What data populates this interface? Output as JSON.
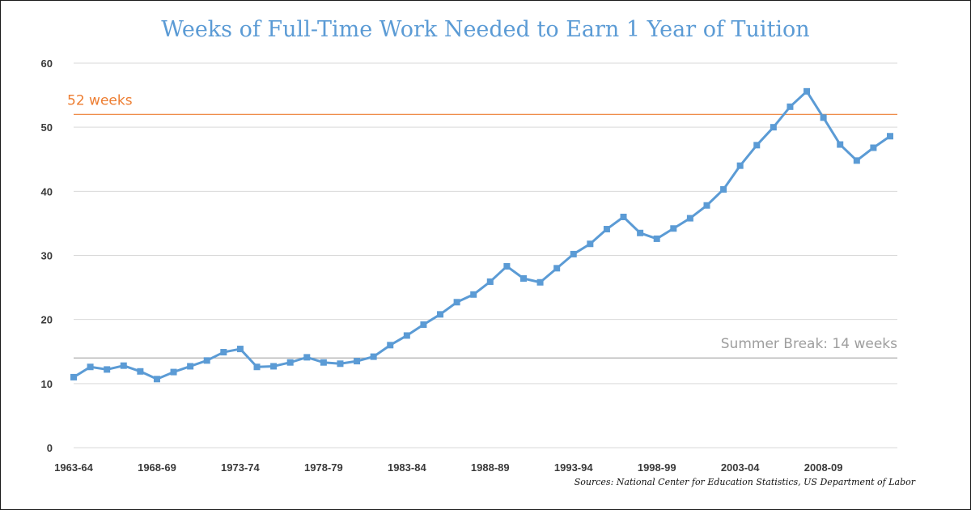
{
  "chart_data": {
    "type": "line",
    "title": "Weeks of Full-Time Work Needed to Earn 1 Year of Tuition",
    "xlabel": "",
    "ylabel": "",
    "ylim": [
      0,
      60
    ],
    "yticks": [
      0,
      10,
      20,
      30,
      40,
      50,
      60
    ],
    "grid": true,
    "x": [
      "1963-64",
      "1964-65",
      "1965-66",
      "1966-67",
      "1967-68",
      "1968-69",
      "1969-70",
      "1970-71",
      "1971-72",
      "1972-73",
      "1973-74",
      "1974-75",
      "1975-76",
      "1976-77",
      "1977-78",
      "1978-79",
      "1979-80",
      "1980-81",
      "1981-82",
      "1982-83",
      "1983-84",
      "1984-85",
      "1985-86",
      "1986-87",
      "1987-88",
      "1988-89",
      "1989-90",
      "1990-91",
      "1991-92",
      "1992-93",
      "1993-94",
      "1994-95",
      "1995-96",
      "1996-97",
      "1997-98",
      "1998-99",
      "1999-00",
      "2000-01",
      "2001-02",
      "2002-03",
      "2003-04",
      "2004-05",
      "2005-06",
      "2006-07",
      "2007-08",
      "2008-09",
      "2009-10",
      "2010-11",
      "2011-12",
      "2012-13"
    ],
    "x_tick_labels": [
      "1963-64",
      "1968-69",
      "1973-74",
      "1978-79",
      "1983-84",
      "1988-89",
      "1993-94",
      "1998-99",
      "2003-04",
      "2008-09"
    ],
    "series": [
      {
        "color": "#5b9bd5",
        "values": [
          11.0,
          12.6,
          12.2,
          12.8,
          11.9,
          10.7,
          11.8,
          12.7,
          13.6,
          14.9,
          15.4,
          12.6,
          12.7,
          13.3,
          14.1,
          13.3,
          13.1,
          13.5,
          14.2,
          16.0,
          17.5,
          19.2,
          20.8,
          22.7,
          23.9,
          25.9,
          28.3,
          26.4,
          25.8,
          28.0,
          30.2,
          31.8,
          34.1,
          36.0,
          33.5,
          32.6,
          34.2,
          35.8,
          37.8,
          40.3,
          44.0,
          47.2,
          50.0,
          53.2,
          55.6,
          51.5,
          47.3,
          44.8,
          46.8,
          48.6
        ]
      }
    ],
    "reference_lines": [
      {
        "value": 52,
        "label": "52 weeks",
        "color": "#ed7d31"
      },
      {
        "value": 14,
        "label": "Summer Break: 14 weeks",
        "color": "#a6a6a6"
      }
    ],
    "source": "Sources: National Center for Education Statistics, US Department of Labor"
  }
}
